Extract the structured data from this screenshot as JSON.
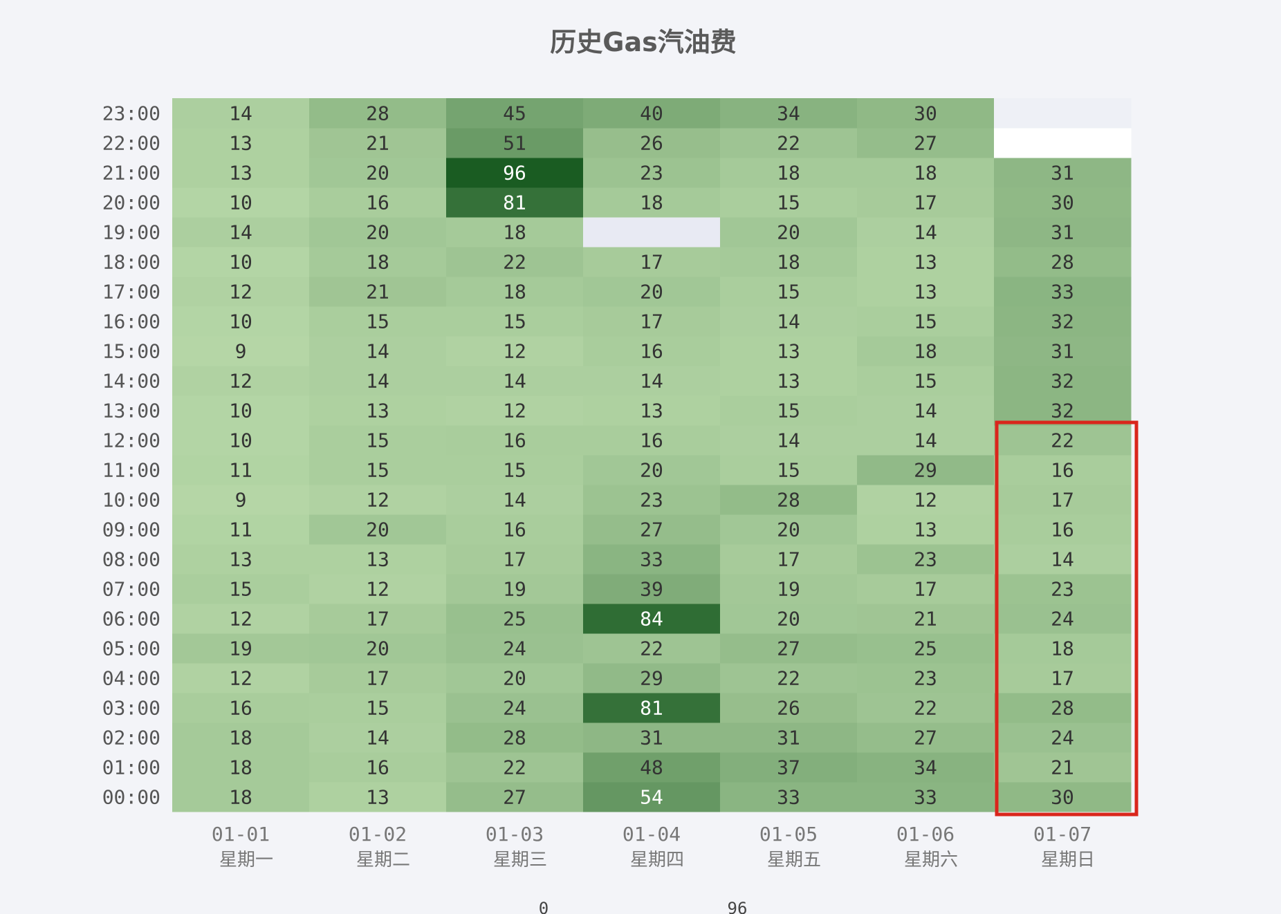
{
  "chart_data": {
    "type": "heatmap",
    "title": "历史Gas汽油费",
    "x_categories": [
      "01-01",
      "01-02",
      "01-03",
      "01-04",
      "01-05",
      "01-06",
      "01-07"
    ],
    "x_sublabels": [
      "星期一",
      "星期二",
      "星期三",
      "星期四",
      "星期五",
      "星期六",
      "星期日"
    ],
    "y_categories": [
      "00:00",
      "01:00",
      "02:00",
      "03:00",
      "04:00",
      "05:00",
      "06:00",
      "07:00",
      "08:00",
      "09:00",
      "10:00",
      "11:00",
      "12:00",
      "13:00",
      "14:00",
      "15:00",
      "16:00",
      "17:00",
      "18:00",
      "19:00",
      "20:00",
      "21:00",
      "22:00",
      "23:00"
    ],
    "values": [
      [
        18,
        13,
        27,
        54,
        33,
        33,
        30
      ],
      [
        18,
        16,
        22,
        48,
        37,
        34,
        21
      ],
      [
        18,
        14,
        28,
        31,
        31,
        27,
        24
      ],
      [
        16,
        15,
        24,
        81,
        26,
        22,
        28
      ],
      [
        12,
        17,
        20,
        29,
        22,
        23,
        17
      ],
      [
        19,
        20,
        24,
        22,
        27,
        25,
        18
      ],
      [
        12,
        17,
        25,
        84,
        20,
        21,
        24
      ],
      [
        15,
        12,
        19,
        39,
        19,
        17,
        23
      ],
      [
        13,
        13,
        17,
        33,
        17,
        23,
        14
      ],
      [
        11,
        20,
        16,
        27,
        20,
        13,
        16
      ],
      [
        9,
        12,
        14,
        23,
        28,
        12,
        17
      ],
      [
        11,
        15,
        15,
        20,
        15,
        29,
        16
      ],
      [
        10,
        15,
        16,
        16,
        14,
        14,
        22
      ],
      [
        10,
        13,
        12,
        13,
        15,
        14,
        32
      ],
      [
        12,
        14,
        14,
        14,
        13,
        15,
        32
      ],
      [
        9,
        14,
        12,
        16,
        13,
        18,
        31
      ],
      [
        10,
        15,
        15,
        17,
        14,
        15,
        32
      ],
      [
        12,
        21,
        18,
        20,
        15,
        13,
        33
      ],
      [
        10,
        18,
        22,
        17,
        18,
        13,
        28
      ],
      [
        14,
        20,
        18,
        null,
        20,
        14,
        31
      ],
      [
        10,
        16,
        81,
        18,
        15,
        17,
        30
      ],
      [
        13,
        20,
        96,
        23,
        18,
        18,
        31
      ],
      [
        13,
        21,
        51,
        26,
        22,
        27,
        null
      ],
      [
        14,
        28,
        45,
        40,
        34,
        30,
        null
      ]
    ],
    "empty_cell_colors": {
      "3,19": "#e8eaf3",
      "6,22": "#ffffff",
      "6,23": "#eef0f6"
    },
    "visual_map": {
      "min": 0,
      "max": 96,
      "colors": [
        "#c5e3b4",
        "#1a5c22"
      ],
      "min_label": "0",
      "max_label": "96"
    },
    "highlight": {
      "column": "01-07",
      "rows_from": "00:00",
      "rows_to": "12:00",
      "color": "#d9261c"
    }
  }
}
